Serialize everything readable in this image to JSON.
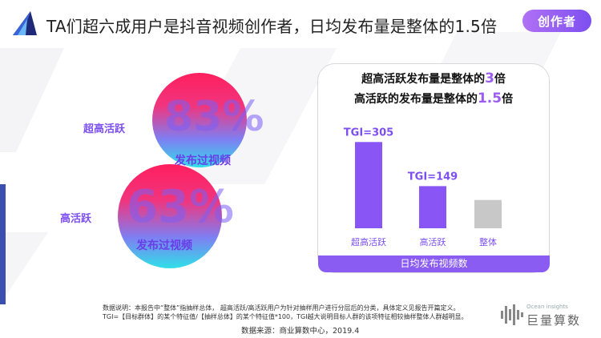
{
  "header": {
    "title": "TA们超六成用户是抖音视频创作者，日均发布量是整体的1.5倍",
    "badge": "创作者"
  },
  "circles": [
    {
      "segment": "超高活跃",
      "percent": "83%",
      "caption": "发布过视频"
    },
    {
      "segment": "高活跃",
      "percent": "63%",
      "caption": "发布过视频"
    }
  ],
  "panel": {
    "note1_pre": "超高活跃发布量是整体的",
    "note1_num": "3",
    "note1_post": "倍",
    "note2_pre": "高活跃的发布量是整体的",
    "note2_num": "1.5",
    "note2_post": "倍"
  },
  "chart_data": {
    "type": "bar",
    "title": "",
    "xlabel": "日均发布视频数",
    "ylabel": "",
    "categories": [
      "超高活跃",
      "高活跃",
      "整体"
    ],
    "values": [
      305,
      149,
      100
    ],
    "data_labels": [
      "TGI=305",
      "TGI=149",
      ""
    ],
    "colors": [
      "#8a55f5",
      "#8a55f5",
      "#c8c8c8"
    ],
    "ylim": [
      0,
      320
    ]
  },
  "footer": {
    "note1": "数据说明：本报告中“整体”指抽样总体，  超高活跃/高活跃用户为针对抽样用户进行分层后的分类，具体定义见报告开篇定义。",
    "note2": "TGI=【目标群体】的某个特征值/【抽样总体】的某个特征值*100，TGI越大说明目标人群的该项特征相较抽样整体人群越明显。",
    "source": "数据来源：商业算数中心，2019.4",
    "brand_sub": "Ocean insights",
    "brand_name": "巨量算数"
  }
}
